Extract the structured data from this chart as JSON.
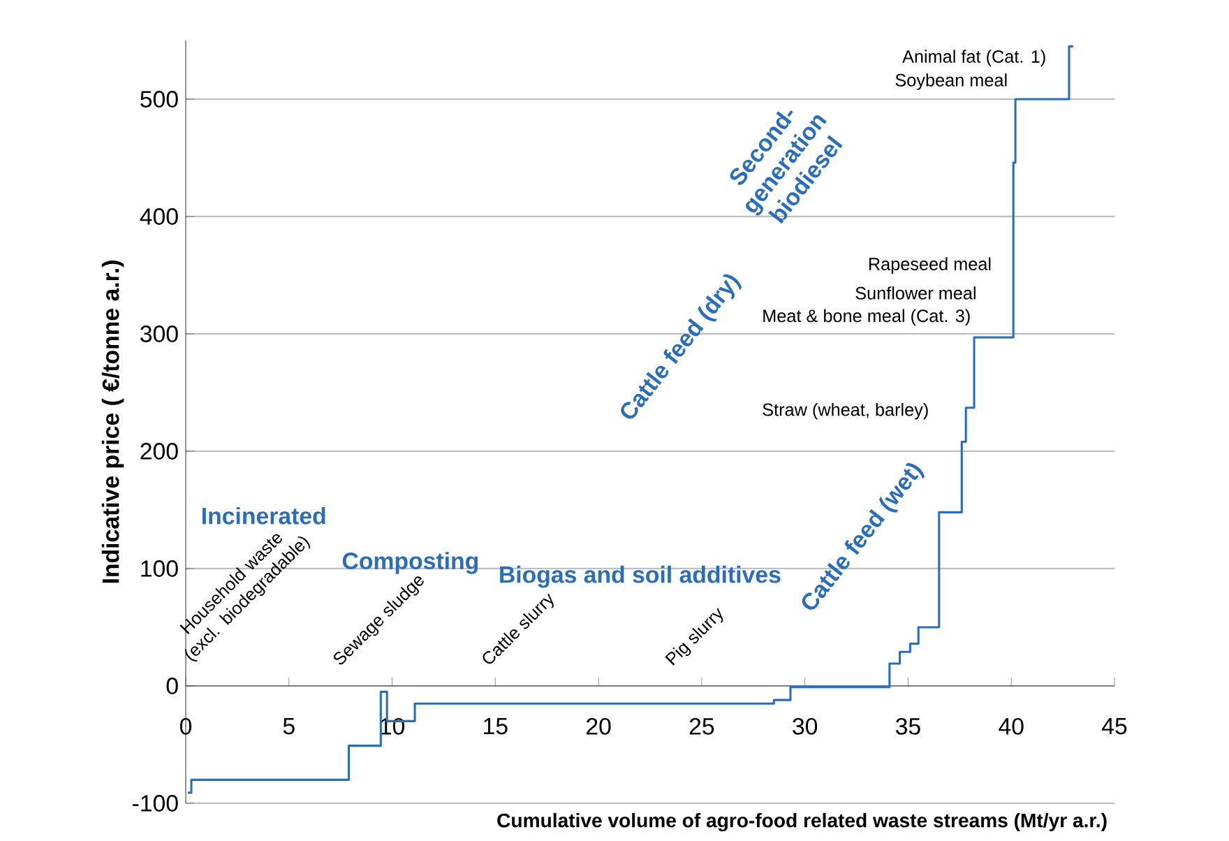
{
  "chart_data": {
    "type": "step",
    "xlabel": "Cumulative volume of agro-food related waste streams (Mt/yr a.r.)",
    "ylabel": "Indicative price ( €/tonne a.r.)",
    "x": [
      0.1,
      0.27,
      7.9,
      9.45,
      9.75,
      11.1,
      12.25,
      19.7,
      28.5,
      29.3,
      34.1,
      34.6,
      35.1,
      35.5,
      35.95,
      36.5,
      37.6,
      37.8,
      38.2,
      39.3,
      39.85,
      40.1,
      40.2,
      40.4,
      42.8,
      43.0
    ],
    "values": [
      -91,
      -80,
      -51,
      -5,
      -30,
      -15,
      -15,
      -15,
      -12,
      -1,
      19,
      29,
      36,
      50,
      50,
      148,
      208,
      237,
      297,
      297,
      297,
      446,
      500,
      500,
      545,
      545
    ],
    "color": "#2a6ebb",
    "xlim": [
      0,
      45
    ],
    "ylim": [
      -100,
      550
    ],
    "xticks": [
      0,
      5,
      10,
      15,
      20,
      25,
      30,
      35,
      40,
      45
    ],
    "yticks": [
      -100,
      0,
      100,
      200,
      300,
      400,
      500
    ],
    "grid": "y",
    "annotations": [
      "Household waste (excl. biodegradable)",
      "Sewage sludge",
      "Cattle slurry",
      "Pig slurry",
      "Incinerated",
      "Composting",
      "Biogas and soil additives",
      "Cattle feed (wet)",
      "Cattle feed (dry)",
      "Second-generation biodiesel",
      "Straw (wheat, barley)",
      "Meat & bone meal (Cat. 3)",
      "Sunflower meal",
      "Rapeseed meal",
      "Soybean meal",
      "Animal fat (Cat. 1)"
    ]
  }
}
